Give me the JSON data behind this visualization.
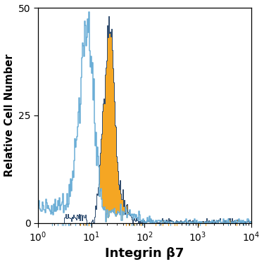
{
  "ylabel": "Relative Cell Number",
  "xlabel": "Integrin β7",
  "xlim_log": [
    0,
    4
  ],
  "ylim": [
    0,
    50
  ],
  "yticks": [
    0,
    25,
    50
  ],
  "background_color": "#ffffff",
  "blue_color": "#6baed6",
  "orange_color": "#f5a623",
  "dark_outline_color": "#2c4a6e",
  "figsize": [
    3.75,
    3.75
  ],
  "dpi": 100,
  "n_bins": 300,
  "blue_seed": 7,
  "orange_seed": 13
}
